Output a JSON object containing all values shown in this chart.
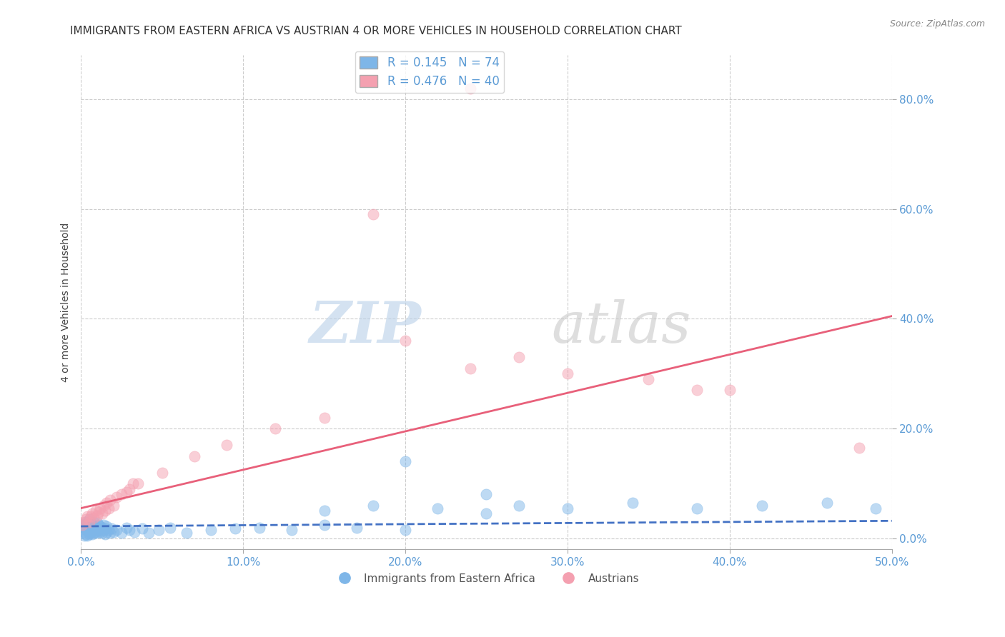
{
  "title": "IMMIGRANTS FROM EASTERN AFRICA VS AUSTRIAN 4 OR MORE VEHICLES IN HOUSEHOLD CORRELATION CHART",
  "source": "Source: ZipAtlas.com",
  "ylabel": "4 or more Vehicles in Household",
  "xlim": [
    0.0,
    0.5
  ],
  "ylim": [
    -0.02,
    0.88
  ],
  "xticks": [
    0.0,
    0.1,
    0.2,
    0.3,
    0.4,
    0.5
  ],
  "xtick_labels": [
    "0.0%",
    "10.0%",
    "20.0%",
    "30.0%",
    "40.0%",
    "50.0%"
  ],
  "yticks": [
    0.0,
    0.2,
    0.4,
    0.6,
    0.8
  ],
  "ytick_labels": [
    "0.0%",
    "20.0%",
    "40.0%",
    "60.0%",
    "80.0%"
  ],
  "blue_color": "#7EB6E8",
  "pink_color": "#F4A0B0",
  "blue_line_color": "#4472C4",
  "pink_line_color": "#E8607A",
  "blue_R": 0.145,
  "blue_N": 74,
  "pink_R": 0.476,
  "pink_N": 40,
  "legend_label_blue": "Immigrants from Eastern Africa",
  "legend_label_pink": "Austrians",
  "watermark_zip": "ZIP",
  "watermark_atlas": "atlas",
  "title_fontsize": 11,
  "axis_label_fontsize": 10,
  "tick_fontsize": 11,
  "legend_fontsize": 12,
  "blue_points_x": [
    0.001,
    0.001,
    0.002,
    0.002,
    0.003,
    0.003,
    0.003,
    0.004,
    0.004,
    0.004,
    0.005,
    0.005,
    0.005,
    0.005,
    0.006,
    0.006,
    0.006,
    0.007,
    0.007,
    0.007,
    0.008,
    0.008,
    0.008,
    0.009,
    0.009,
    0.01,
    0.01,
    0.01,
    0.011,
    0.011,
    0.012,
    0.012,
    0.013,
    0.013,
    0.014,
    0.014,
    0.015,
    0.015,
    0.016,
    0.016,
    0.017,
    0.018,
    0.019,
    0.02,
    0.022,
    0.025,
    0.028,
    0.03,
    0.033,
    0.038,
    0.042,
    0.048,
    0.055,
    0.065,
    0.08,
    0.095,
    0.11,
    0.13,
    0.15,
    0.17,
    0.2,
    0.22,
    0.25,
    0.27,
    0.3,
    0.34,
    0.38,
    0.42,
    0.46,
    0.49,
    0.15,
    0.18,
    0.2,
    0.25
  ],
  "blue_points_y": [
    0.01,
    0.025,
    0.005,
    0.02,
    0.015,
    0.03,
    0.008,
    0.018,
    0.028,
    0.005,
    0.012,
    0.022,
    0.035,
    0.008,
    0.018,
    0.028,
    0.01,
    0.015,
    0.025,
    0.008,
    0.018,
    0.03,
    0.01,
    0.02,
    0.012,
    0.018,
    0.028,
    0.01,
    0.015,
    0.025,
    0.012,
    0.022,
    0.01,
    0.02,
    0.015,
    0.025,
    0.008,
    0.018,
    0.012,
    0.022,
    0.015,
    0.01,
    0.018,
    0.012,
    0.015,
    0.01,
    0.02,
    0.015,
    0.012,
    0.018,
    0.01,
    0.015,
    0.02,
    0.01,
    0.015,
    0.018,
    0.02,
    0.015,
    0.025,
    0.02,
    0.015,
    0.055,
    0.045,
    0.06,
    0.055,
    0.065,
    0.055,
    0.06,
    0.065,
    0.055,
    0.05,
    0.06,
    0.14,
    0.08
  ],
  "pink_points_x": [
    0.001,
    0.002,
    0.003,
    0.004,
    0.005,
    0.006,
    0.007,
    0.008,
    0.009,
    0.01,
    0.011,
    0.012,
    0.013,
    0.014,
    0.015,
    0.016,
    0.017,
    0.018,
    0.02,
    0.022,
    0.025,
    0.028,
    0.03,
    0.032,
    0.035,
    0.05,
    0.07,
    0.09,
    0.12,
    0.15,
    0.18,
    0.2,
    0.24,
    0.3,
    0.35,
    0.4,
    0.24,
    0.27,
    0.38,
    0.48
  ],
  "pink_points_y": [
    0.025,
    0.03,
    0.035,
    0.04,
    0.03,
    0.04,
    0.045,
    0.038,
    0.05,
    0.042,
    0.048,
    0.055,
    0.045,
    0.06,
    0.05,
    0.065,
    0.055,
    0.07,
    0.06,
    0.075,
    0.08,
    0.085,
    0.09,
    0.1,
    0.1,
    0.12,
    0.15,
    0.17,
    0.2,
    0.22,
    0.59,
    0.36,
    0.31,
    0.3,
    0.29,
    0.27,
    0.82,
    0.33,
    0.27,
    0.165
  ],
  "blue_reg_intercept": 0.022,
  "blue_reg_slope": 0.02,
  "pink_reg_intercept": 0.055,
  "pink_reg_slope": 0.7,
  "grid_color": "#CCCCCC",
  "background_color": "#FFFFFF",
  "axis_color": "#5B9BD5"
}
